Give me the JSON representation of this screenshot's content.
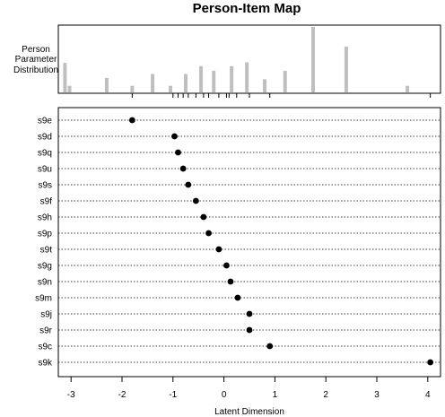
{
  "chart_data": {
    "type": "scatter",
    "title": "Person-Item Map",
    "xlabel": "Latent Dimension",
    "top_panel_label": [
      "Person",
      "Parameter",
      "Distribution"
    ],
    "xlim": [
      -3.25,
      4.25
    ],
    "xticks": [
      -3,
      -2,
      -1,
      0,
      1,
      2,
      3,
      4
    ],
    "xtick_labels": [
      "-3",
      "-2",
      "-1",
      "0",
      "1",
      "2",
      "3",
      "4"
    ],
    "person_distribution": {
      "x": [
        -3.12,
        -3.03,
        -2.3,
        -1.8,
        -1.4,
        -1.05,
        -0.75,
        -0.45,
        -0.2,
        0.15,
        0.45,
        0.8,
        1.2,
        1.75,
        2.4,
        3.6
      ],
      "y": [
        0.45,
        0.1,
        0.22,
        0.1,
        0.28,
        0.1,
        0.28,
        0.4,
        0.33,
        0.4,
        0.46,
        0.2,
        0.33,
        1.0,
        0.7,
        0.1
      ]
    },
    "item_ticks": [
      -1.8,
      -1.0,
      -0.9,
      -0.8,
      -0.7,
      -0.55,
      -0.4,
      -0.3,
      -0.1,
      0.05,
      0.1,
      0.25,
      0.5,
      0.9,
      4.05
    ],
    "items": [
      {
        "label": "s9e",
        "value": -1.8
      },
      {
        "label": "s9d",
        "value": -0.97
      },
      {
        "label": "s9q",
        "value": -0.9
      },
      {
        "label": "s9u",
        "value": -0.8
      },
      {
        "label": "s9s",
        "value": -0.7
      },
      {
        "label": "s9f",
        "value": -0.55
      },
      {
        "label": "s9h",
        "value": -0.4
      },
      {
        "label": "s9p",
        "value": -0.3
      },
      {
        "label": "s9t",
        "value": -0.1
      },
      {
        "label": "s9g",
        "value": 0.05
      },
      {
        "label": "s9n",
        "value": 0.13
      },
      {
        "label": "s9m",
        "value": 0.27
      },
      {
        "label": "s9j",
        "value": 0.5
      },
      {
        "label": "s9r",
        "value": 0.5
      },
      {
        "label": "s9c",
        "value": 0.9
      },
      {
        "label": "s9k",
        "value": 4.05
      }
    ]
  }
}
